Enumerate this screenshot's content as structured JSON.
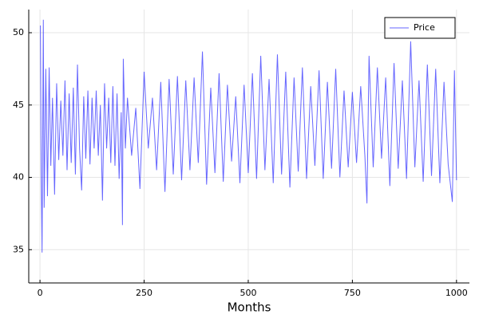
{
  "chart_data": {
    "type": "line",
    "xlabel": "Months",
    "x": [
      1,
      3,
      5,
      8,
      10,
      14,
      18,
      22,
      26,
      30,
      35,
      40,
      45,
      50,
      55,
      60,
      65,
      70,
      75,
      80,
      85,
      90,
      95,
      100,
      105,
      110,
      115,
      120,
      125,
      130,
      135,
      140,
      145,
      150,
      155,
      160,
      165,
      170,
      175,
      180,
      185,
      190,
      195,
      198,
      200,
      205,
      210,
      220,
      230,
      240,
      250,
      260,
      270,
      280,
      290,
      300,
      310,
      320,
      330,
      340,
      350,
      360,
      370,
      380,
      390,
      400,
      410,
      420,
      430,
      440,
      450,
      460,
      470,
      480,
      490,
      500,
      510,
      520,
      530,
      540,
      550,
      560,
      570,
      580,
      590,
      600,
      610,
      620,
      630,
      640,
      650,
      660,
      670,
      680,
      690,
      700,
      710,
      720,
      730,
      740,
      750,
      760,
      770,
      780,
      785,
      790,
      800,
      810,
      820,
      830,
      840,
      850,
      860,
      870,
      880,
      890,
      900,
      910,
      920,
      930,
      940,
      950,
      960,
      970,
      980,
      990,
      995,
      1000
    ],
    "series": [
      {
        "name": "Price",
        "color": "#0000ff",
        "values": [
          50.5,
          40.2,
          34.8,
          50.9,
          37.9,
          47.5,
          38.7,
          47.6,
          40.8,
          45.5,
          38.8,
          46.5,
          41.2,
          45.3,
          41.5,
          46.7,
          40.5,
          45.8,
          41.0,
          46.2,
          40.2,
          47.8,
          42.0,
          39.1,
          45.6,
          41.3,
          46.0,
          40.9,
          45.5,
          42.0,
          46.0,
          41.5,
          45.0,
          38.4,
          46.5,
          42.0,
          45.5,
          41.0,
          46.3,
          40.8,
          45.8,
          39.9,
          44.5,
          36.7,
          48.2,
          42.0,
          45.5,
          41.5,
          44.8,
          39.2,
          47.3,
          42.0,
          45.5,
          40.5,
          46.6,
          39.0,
          46.8,
          40.2,
          47.0,
          39.8,
          46.7,
          40.5,
          46.9,
          41.0,
          48.7,
          39.5,
          46.2,
          40.3,
          47.2,
          39.7,
          46.4,
          41.1,
          45.6,
          39.6,
          46.4,
          40.3,
          47.2,
          39.9,
          48.4,
          40.5,
          46.8,
          39.6,
          48.5,
          40.2,
          47.3,
          39.3,
          46.9,
          40.4,
          47.6,
          39.9,
          46.3,
          40.8,
          47.4,
          39.9,
          46.6,
          40.6,
          47.5,
          40.0,
          46.0,
          40.7,
          45.9,
          41.0,
          46.3,
          41.5,
          38.2,
          48.4,
          40.7,
          47.6,
          41.3,
          46.9,
          39.4,
          47.9,
          40.6,
          46.7,
          39.9,
          49.4,
          40.7,
          46.7,
          39.7,
          47.8,
          40.1,
          47.5,
          39.6,
          46.6,
          40.9,
          38.3,
          47.4,
          39.8
        ]
      }
    ],
    "xlim": [
      -27,
      1031
    ],
    "ylim": [
      32.7,
      51.6
    ],
    "xticks": [
      0,
      250,
      500,
      750,
      1000
    ],
    "yticks": [
      35,
      40,
      45,
      50
    ],
    "grid": true,
    "legend": "top-right"
  }
}
